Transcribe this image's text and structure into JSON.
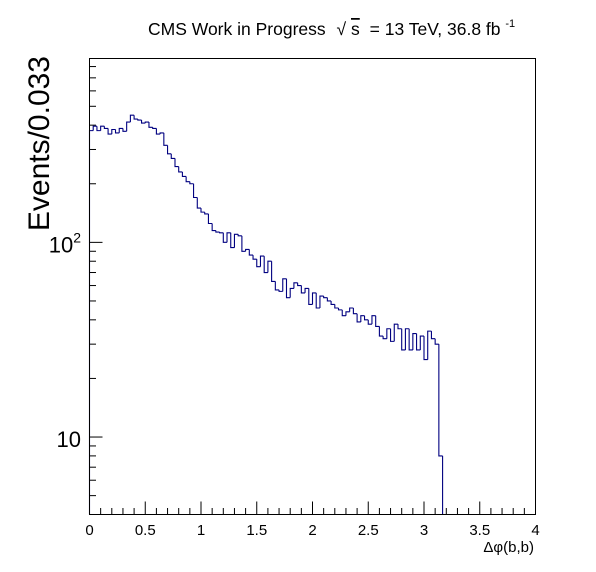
{
  "header": {
    "label_main": "CMS Work in Progress",
    "label_sqrt_symbol": "√",
    "label_energy_var": "s",
    "label_energy_rest": "= 13 TeV, 36.8 fb",
    "label_lumi_exponent": "-1"
  },
  "chart_data": {
    "type": "histogram",
    "title": "CMS Work in Progress √s = 13 TeV, 36.8 fb-1",
    "xlabel": "Δφ(b,b)",
    "ylabel": "Events/0.033",
    "xlim": [
      0,
      4
    ],
    "ylim": [
      4,
      880
    ],
    "yscale": "log",
    "grid": false,
    "line_color": "#000080",
    "bin_width": 0.0333,
    "x_tick_labels": [
      "0",
      "0.5",
      "1",
      "1.5",
      "2",
      "2.5",
      "3",
      "3.5",
      "4"
    ],
    "y_tick_labels": [
      {
        "value": 10,
        "base": "10",
        "exp": ""
      },
      {
        "value": 100,
        "base": "10",
        "exp": "2"
      }
    ],
    "series": [
      {
        "bin_low_edges": [
          0,
          0.0333,
          0.0667,
          0.1,
          0.1333,
          0.1667,
          0.2,
          0.2333,
          0.2667,
          0.3,
          0.3333,
          0.3667,
          0.4,
          0.4333,
          0.4667,
          0.5,
          0.5333,
          0.5667,
          0.6,
          0.6333,
          0.6667,
          0.7,
          0.7333,
          0.7667,
          0.8,
          0.8333,
          0.8667,
          0.9,
          0.9333,
          0.9667,
          1,
          1.0333,
          1.0667,
          1.1,
          1.1333,
          1.1667,
          1.2,
          1.2333,
          1.2667,
          1.3,
          1.3333,
          1.3667,
          1.4,
          1.4333,
          1.4667,
          1.5,
          1.5333,
          1.5667,
          1.6,
          1.6333,
          1.6667,
          1.7,
          1.7333,
          1.7667,
          1.8,
          1.8333,
          1.8667,
          1.9,
          1.9333,
          1.9667,
          2,
          2.0333,
          2.0667,
          2.1,
          2.1333,
          2.1667,
          2.2,
          2.2333,
          2.2667,
          2.3,
          2.3333,
          2.3667,
          2.4,
          2.4333,
          2.4667,
          2.5,
          2.5333,
          2.5667,
          2.6,
          2.6333,
          2.6667,
          2.7,
          2.7333,
          2.7667,
          2.8,
          2.8333,
          2.8667,
          2.9,
          2.9333,
          2.9667,
          3,
          3.0333,
          3.0667,
          3.1,
          3.1333,
          3.1667
        ],
        "values": [
          375,
          395,
          375,
          395,
          385,
          360,
          380,
          365,
          385,
          372,
          415,
          450,
          430,
          425,
          410,
          415,
          390,
          385,
          360,
          365,
          315,
          285,
          270,
          245,
          230,
          218,
          205,
          200,
          170,
          150,
          143,
          140,
          125,
          115,
          113,
          112,
          100,
          112,
          94,
          110,
          108,
          90,
          92,
          86,
          82,
          75,
          85,
          70,
          80,
          63,
          57,
          56,
          65,
          52,
          58,
          62,
          60,
          55,
          58,
          48,
          55,
          46,
          53,
          52,
          50,
          48,
          46,
          45,
          42,
          44,
          46,
          43,
          39,
          42,
          40,
          38,
          42,
          37,
          33,
          32,
          36,
          31,
          38,
          36,
          28,
          36,
          28,
          34,
          28,
          33,
          25,
          35,
          32,
          30,
          8,
          0
        ]
      }
    ]
  }
}
